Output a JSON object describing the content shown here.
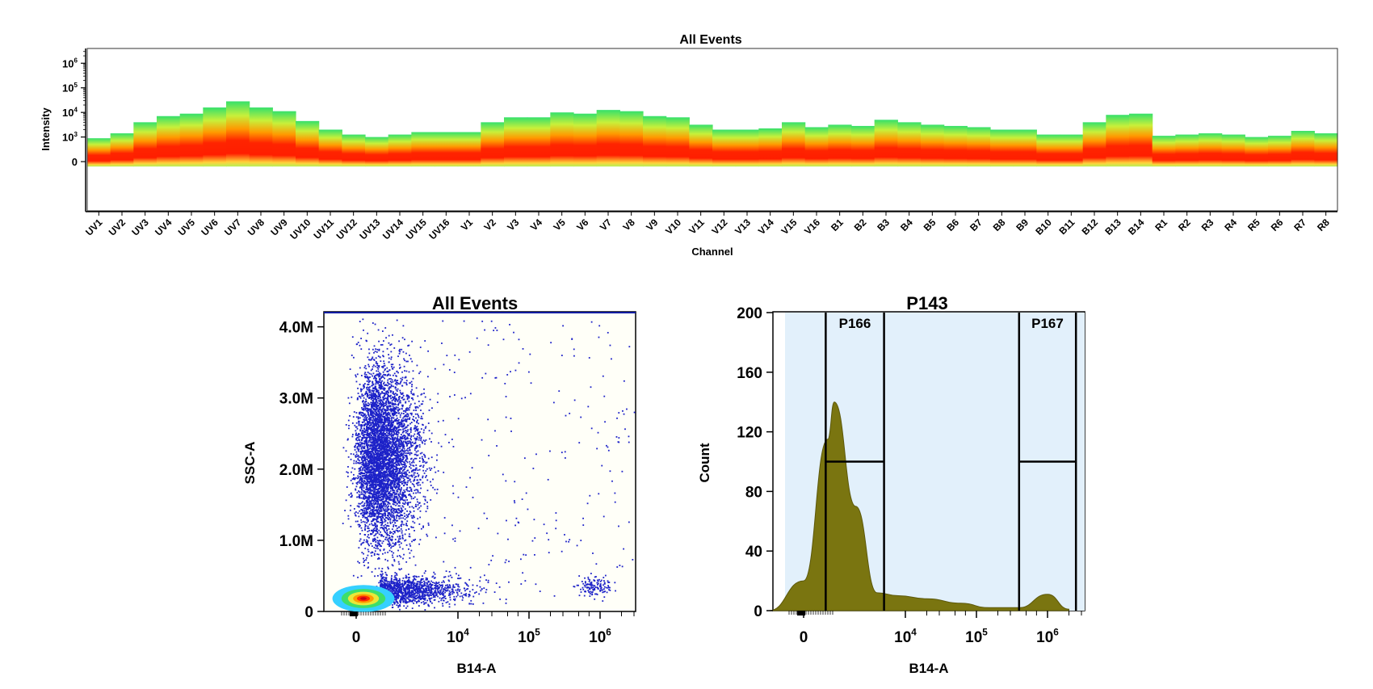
{
  "spectrum": {
    "title": "All Events",
    "xlabel": "Channel",
    "ylabel": "Intensity",
    "y_ticks": [
      {
        "base": "0",
        "exp": ""
      },
      {
        "base": "10",
        "exp": "3"
      },
      {
        "base": "10",
        "exp": "4"
      },
      {
        "base": "10",
        "exp": "5"
      },
      {
        "base": "10",
        "exp": "6"
      }
    ]
  },
  "dot": {
    "title": "All Events",
    "xlabel": "B14-A",
    "ylabel": "SSC-A",
    "y_ticks": [
      "0",
      "1.0M",
      "2.0M",
      "3.0M",
      "4.0M"
    ],
    "x_ticks": [
      {
        "base": "0",
        "exp": ""
      },
      {
        "base": "10",
        "exp": "4"
      },
      {
        "base": "10",
        "exp": "5"
      },
      {
        "base": "10",
        "exp": "6"
      }
    ]
  },
  "hist": {
    "title": "P143",
    "xlabel": "B14-A",
    "ylabel": "Count",
    "y_ticks": [
      "0",
      "40",
      "80",
      "120",
      "160",
      "200"
    ],
    "x_ticks": [
      {
        "base": "0",
        "exp": ""
      },
      {
        "base": "10",
        "exp": "4"
      },
      {
        "base": "10",
        "exp": "5"
      },
      {
        "base": "10",
        "exp": "6"
      }
    ],
    "gates": [
      {
        "name": "P166",
        "from_log": 2.6,
        "to_log": 3.7,
        "level": 100
      },
      {
        "name": "P167",
        "from_log": 5.6,
        "to_log": 6.4,
        "level": 100
      }
    ]
  },
  "chart_data": [
    {
      "type": "heatmap",
      "title": "All Events",
      "xlabel": "Channel",
      "ylabel": "Intensity",
      "y_scale": "log",
      "ylim": [
        0,
        6.6
      ],
      "categories": [
        "UV1",
        "UV2",
        "UV3",
        "UV4",
        "UV5",
        "UV6",
        "UV7",
        "UV8",
        "UV9",
        "UV10",
        "UV11",
        "UV12",
        "UV13",
        "UV14",
        "UV15",
        "UV16",
        "V1",
        "V2",
        "V3",
        "V4",
        "V5",
        "V6",
        "V7",
        "V8",
        "V9",
        "V10",
        "V11",
        "V12",
        "V13",
        "V14",
        "V15",
        "V16",
        "B1",
        "B2",
        "B3",
        "B4",
        "B5",
        "B6",
        "B7",
        "B8",
        "B9",
        "B10",
        "B11",
        "B12",
        "B13",
        "B14",
        "R1",
        "R2",
        "R3",
        "R4",
        "R5",
        "R6",
        "R7",
        "R8"
      ],
      "max_log_intensity": [
        2.95,
        3.15,
        3.6,
        3.85,
        3.95,
        4.2,
        4.45,
        4.2,
        4.05,
        3.65,
        3.3,
        3.1,
        3.0,
        3.1,
        3.2,
        3.2,
        3.2,
        3.6,
        3.8,
        3.8,
        4.0,
        3.95,
        4.1,
        4.05,
        3.85,
        3.8,
        3.5,
        3.3,
        3.3,
        3.35,
        3.6,
        3.4,
        3.5,
        3.45,
        3.7,
        3.6,
        3.5,
        3.45,
        3.4,
        3.3,
        3.3,
        3.1,
        3.1,
        3.6,
        3.9,
        3.95,
        3.05,
        3.1,
        3.15,
        3.1,
        3.0,
        3.05,
        3.25,
        3.15
      ]
    },
    {
      "type": "scatter",
      "title": "All Events",
      "xlabel": "B14-A",
      "ylabel": "SSC-A",
      "x_scale": "biexponential",
      "ylim": [
        0,
        4200000
      ],
      "series": [
        {
          "name": "",
          "population": "main",
          "x_center": 0,
          "y_center": 1600000
        },
        {
          "name": "",
          "population": "dense-low",
          "x_center": 300,
          "y_center": 200000
        },
        {
          "name": "",
          "population": "positive",
          "x_center": 1200000,
          "y_center": 300000
        }
      ]
    },
    {
      "type": "area",
      "title": "P143",
      "xlabel": "B14-A",
      "ylabel": "Count",
      "x_scale": "biexponential",
      "ylim": [
        0,
        200
      ],
      "x": [
        "-1500",
        "0",
        "500",
        "1000",
        "2000",
        "4000",
        "8000",
        "20000",
        "60000",
        "150000",
        "400000",
        "1000000",
        "2000000"
      ],
      "y": [
        0,
        20,
        115,
        140,
        70,
        12,
        10,
        8,
        5,
        2,
        2,
        11,
        1
      ]
    }
  ]
}
